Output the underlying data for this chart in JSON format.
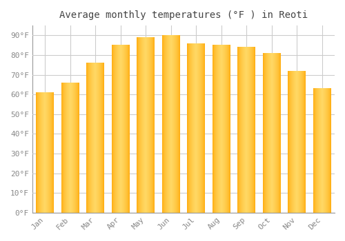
{
  "title": "Average monthly temperatures (°F ) in Reoti",
  "months": [
    "Jan",
    "Feb",
    "Mar",
    "Apr",
    "May",
    "Jun",
    "Jul",
    "Aug",
    "Sep",
    "Oct",
    "Nov",
    "Dec"
  ],
  "values": [
    61,
    66,
    76,
    85,
    89,
    90,
    86,
    85,
    84,
    81,
    72,
    63
  ],
  "bar_color": "#FFA500",
  "bar_gradient_center": "#FFD966",
  "background_color": "#FFFFFF",
  "grid_color": "#CCCCCC",
  "ylim": [
    0,
    95
  ],
  "yticks": [
    0,
    10,
    20,
    30,
    40,
    50,
    60,
    70,
    80,
    90
  ],
  "ytick_labels": [
    "0°F",
    "10°F",
    "20°F",
    "30°F",
    "40°F",
    "50°F",
    "60°F",
    "70°F",
    "80°F",
    "90°F"
  ],
  "title_fontsize": 10,
  "tick_fontsize": 8,
  "title_color": "#444444",
  "tick_color": "#888888",
  "font_family": "monospace"
}
